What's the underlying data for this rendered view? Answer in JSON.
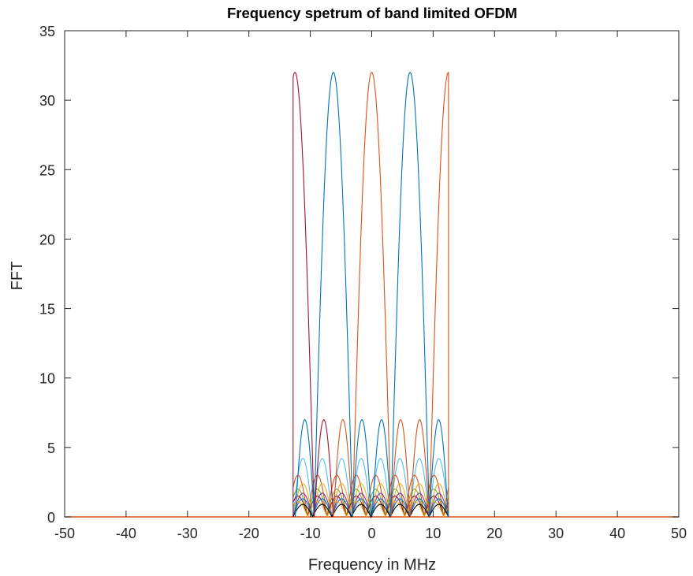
{
  "chart_data": {
    "type": "line",
    "title": "Frequency spetrum of band limited OFDM",
    "xlabel": "Frequency in MHz",
    "ylabel": "FFT",
    "xlim": [
      -50,
      50
    ],
    "ylim": [
      0,
      35
    ],
    "xticks": [
      -50,
      -40,
      -30,
      -20,
      -10,
      0,
      10,
      20,
      30,
      40,
      50
    ],
    "yticks": [
      0,
      5,
      10,
      15,
      20,
      25,
      30,
      35
    ],
    "grid": false,
    "legend": "none",
    "band_mhz": [
      -12.8,
      12.5
    ],
    "series": [
      {
        "peak_mhz": -12.5,
        "peak_value": 32,
        "color": "#A2142F"
      },
      {
        "peak_mhz": -6.25,
        "peak_value": 32,
        "color": "#0072BD"
      },
      {
        "peak_mhz": 0,
        "peak_value": 32,
        "color": "#D95319"
      },
      {
        "peak_mhz": 6.25,
        "peak_value": 32,
        "color": "#0072BD"
      },
      {
        "peak_mhz": 12.5,
        "peak_value": 32,
        "color": "#D95319"
      },
      {
        "peak_mhz": -10.9,
        "peak_value": 7,
        "color": "#0072BD"
      },
      {
        "peak_mhz": -7.8,
        "peak_value": 7,
        "color": "#A2142F"
      },
      {
        "peak_mhz": -4.7,
        "peak_value": 7,
        "color": "#D95319"
      },
      {
        "peak_mhz": -1.6,
        "peak_value": 7,
        "color": "#0072BD"
      },
      {
        "peak_mhz": 1.6,
        "peak_value": 7,
        "color": "#0072BD"
      },
      {
        "peak_mhz": 4.7,
        "peak_value": 7,
        "color": "#D95319"
      },
      {
        "peak_mhz": 7.8,
        "peak_value": 7,
        "color": "#D95319"
      },
      {
        "peak_mhz": 10.9,
        "peak_value": 7,
        "color": "#0072BD"
      }
    ],
    "sidelobe_levels": [
      4.2,
      3.0,
      2.4,
      2.0,
      1.7,
      1.5,
      1.3,
      1.1,
      0.9
    ],
    "sidelobe_colors": [
      "#4DBEEE",
      "#D95319",
      "#EDB120",
      "#77AC30",
      "#7E2F8E",
      "#A2142F",
      "#0072BD",
      "#EDB120",
      "#000000"
    ],
    "baseline_color": "#D95319"
  }
}
